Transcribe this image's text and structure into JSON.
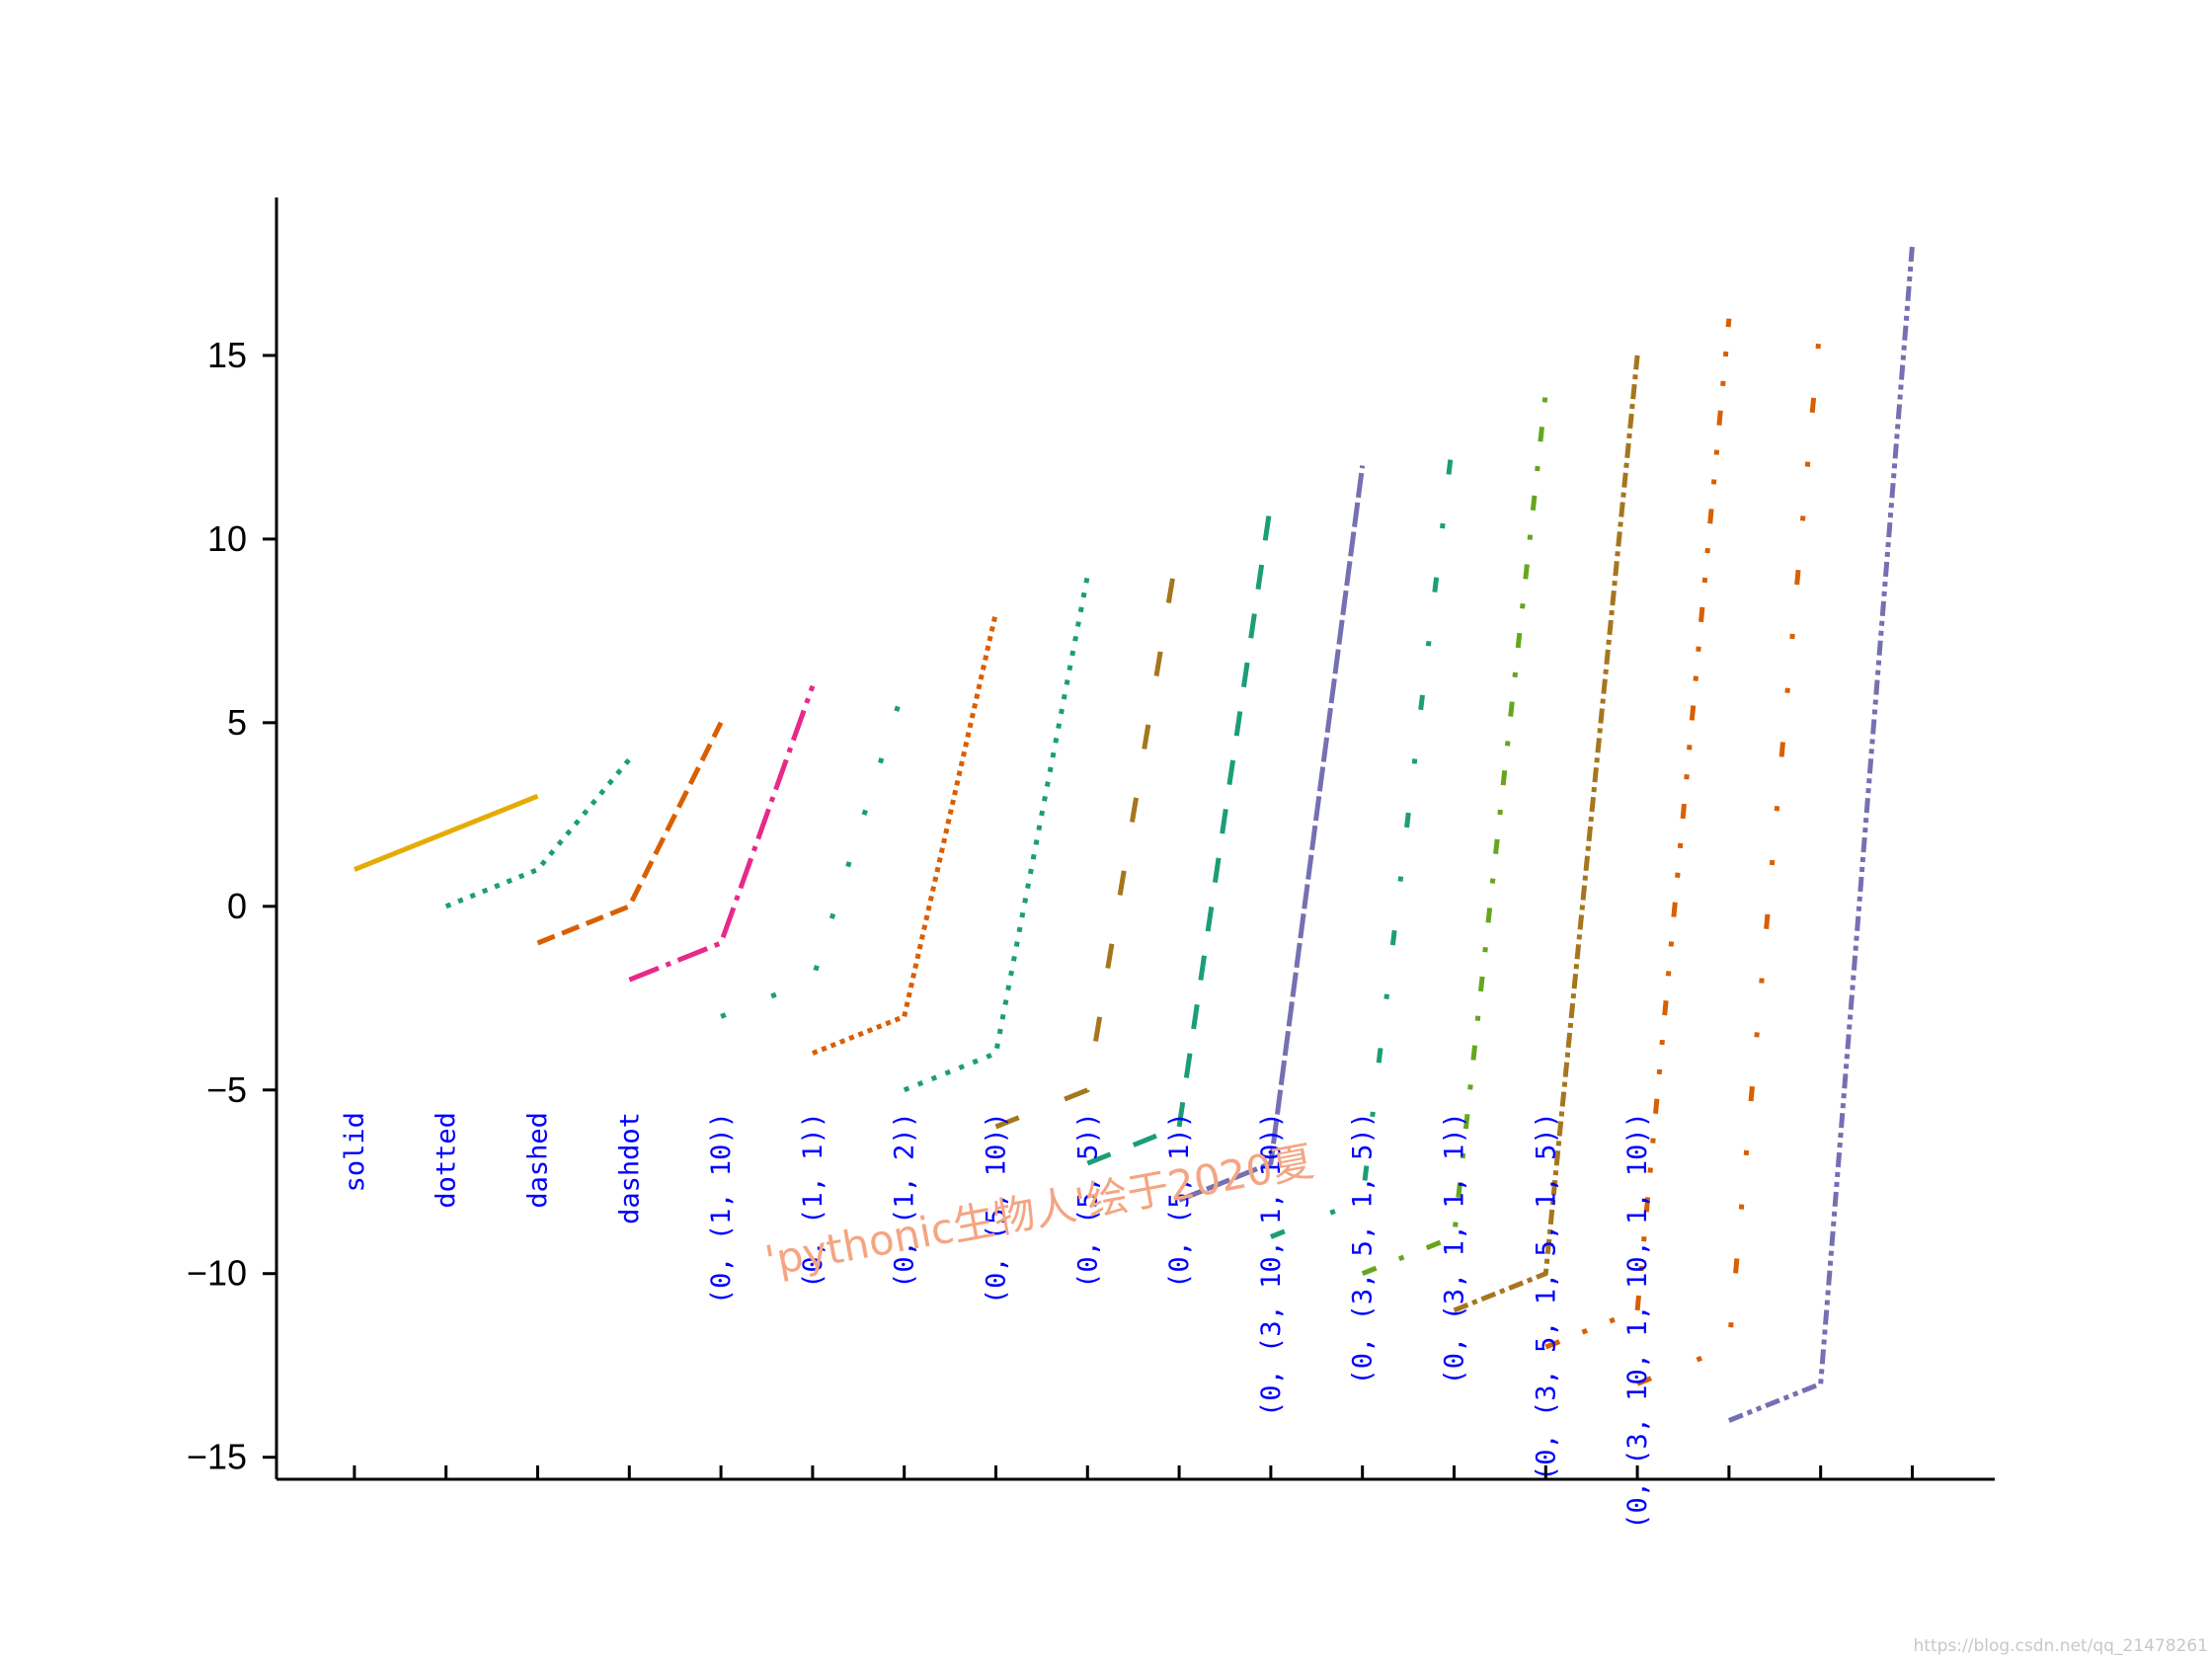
{
  "chart_data": {
    "type": "line",
    "title": "",
    "xlabel": "",
    "ylabel": "",
    "ylim": [
      -15.6,
      19.3
    ],
    "xlim": [
      -0.85,
      17.9
    ],
    "yticks": [
      -15,
      -10,
      -5,
      0,
      5,
      10,
      15
    ],
    "xticks": [
      0,
      1,
      2,
      3,
      4,
      5,
      6,
      7,
      8,
      9,
      10,
      11,
      12,
      13,
      14,
      15,
      16,
      17
    ],
    "grid": false,
    "spines": [
      "left",
      "bottom"
    ],
    "series": [
      {
        "x": [
          0,
          2
        ],
        "y": [
          1,
          3
        ],
        "dash": [],
        "color": "#e6ab02",
        "label": "solid"
      },
      {
        "x": [
          1,
          2,
          3
        ],
        "y": [
          0,
          1,
          4
        ],
        "dash": [
          1,
          1.65
        ],
        "color": "#1b9e77",
        "label": "dotted"
      },
      {
        "x": [
          2,
          3,
          4
        ],
        "y": [
          -1,
          0,
          5
        ],
        "dash": [
          3.7,
          1.6
        ],
        "color": "#d95f02",
        "label": "dashed"
      },
      {
        "x": [
          3,
          4,
          5
        ],
        "y": [
          -2,
          -1,
          6
        ],
        "dash": [
          6.4,
          1.6,
          1,
          1.6
        ],
        "color": "#e7298a",
        "label": "dashdot"
      },
      {
        "x": [
          4,
          5,
          6
        ],
        "y": [
          -3,
          -2,
          6
        ],
        "dash": [
          1,
          10
        ],
        "color": "#1b9e77",
        "label": "(0, (1, 10))"
      },
      {
        "x": [
          5,
          6,
          7
        ],
        "y": [
          -4,
          -3,
          8
        ],
        "dash": [
          1,
          1
        ],
        "color": "#d95f02",
        "label": "(0, (1, 1))"
      },
      {
        "x": [
          6,
          7,
          8
        ],
        "y": [
          -5,
          -4,
          9
        ],
        "dash": [
          1,
          2
        ],
        "color": "#1b9e77",
        "label": "(0, (1, 2))"
      },
      {
        "x": [
          7,
          8,
          9
        ],
        "y": [
          -6,
          -5,
          10
        ],
        "dash": [
          5,
          10
        ],
        "color": "#a6761d",
        "label": "(0, (5, 10))"
      },
      {
        "x": [
          8,
          9,
          10
        ],
        "y": [
          -7,
          -6,
          11
        ],
        "dash": [
          5,
          5
        ],
        "color": "#1b9e77",
        "label": "(0, (5, 5))"
      },
      {
        "x": [
          9,
          10,
          11
        ],
        "y": [
          -8,
          -7,
          12
        ],
        "dash": [
          5,
          1
        ],
        "color": "#7570b3",
        "label": "(0, (5, 1))"
      },
      {
        "x": [
          10,
          11,
          12
        ],
        "y": [
          -9,
          -8,
          13
        ],
        "dash": [
          3,
          10,
          1,
          10
        ],
        "color": "#1b9e77",
        "label": "(0, (3, 10, 1, 10))"
      },
      {
        "x": [
          11,
          12,
          13
        ],
        "y": [
          -10,
          -9,
          14
        ],
        "dash": [
          3,
          5,
          1,
          5
        ],
        "color": "#66a61e",
        "label": "(0, (3, 5, 1, 5))"
      },
      {
        "x": [
          12,
          13,
          14
        ],
        "y": [
          -11,
          -10,
          15
        ],
        "dash": [
          3,
          1,
          1,
          1
        ],
        "color": "#a6761d",
        "label": "(0, (3, 1, 1, 1))"
      },
      {
        "x": [
          13,
          14,
          15
        ],
        "y": [
          -12,
          -11,
          16
        ],
        "dash": [
          3,
          5,
          1,
          5,
          1,
          5
        ],
        "color": "#d95f02",
        "label": "(0, (3, 5, 1, 5, 1, 5))"
      },
      {
        "x": [
          14,
          15,
          16
        ],
        "y": [
          -13,
          -12,
          16
        ],
        "dash": [
          3,
          10,
          1,
          10,
          1,
          10
        ],
        "color": "#d95f02",
        "label": "(0, (3, 10, 1, 10, 1, 10))"
      },
      {
        "x": [
          15,
          16,
          17
        ],
        "y": [
          -14,
          -13,
          18
        ],
        "dash": [
          3,
          1,
          1,
          1,
          1,
          1
        ],
        "color": "#7570b3"
      }
    ],
    "annotations": {
      "watermark": "'pythonic生物人'绘于2020夏",
      "credit": "https://blog.csdn.net/qq_21478261"
    }
  }
}
